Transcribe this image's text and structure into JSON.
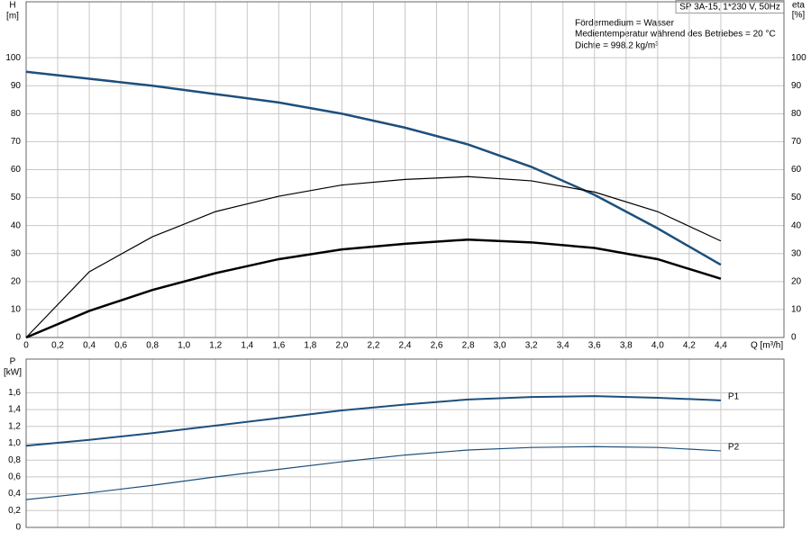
{
  "chart_data": [
    {
      "type": "line",
      "ylabel": "H",
      "yunit": "[m]",
      "y2label": "eta",
      "y2unit": "[%]",
      "xlabel": "Q [m³/h]",
      "annotations": [
        "SP 3A-15, 1*230 V, 50Hz",
        "Fördermedium = Wasser",
        "Medientemperatur während des Betriebes = 20 °C",
        "Dichte = 998.2 kg/m³"
      ],
      "x": [
        0,
        0.4,
        0.8,
        1.2,
        1.6,
        2.0,
        2.4,
        2.8,
        3.2,
        3.6,
        4.0,
        4.4
      ],
      "series": [
        {
          "color": "#1d4f7c",
          "values": [
            95,
            92.5,
            90,
            87,
            84,
            80,
            75,
            69,
            61,
            51,
            39,
            26
          ]
        },
        {
          "color": "#000000",
          "axis": "y2",
          "values": [
            0,
            23.5,
            36,
            45,
            50.5,
            54.5,
            56.5,
            57.5,
            56,
            52,
            45,
            34.5
          ]
        },
        {
          "color": "#000000",
          "axis": "y2",
          "values": [
            0,
            9.5,
            17,
            23,
            28,
            31.5,
            33.5,
            35,
            34,
            32,
            28,
            21
          ]
        }
      ],
      "xlim": [
        0,
        4.8
      ],
      "xticks": [
        0,
        {
          "value": 0.2,
          "label": "0,2"
        },
        {
          "value": 0.4,
          "label": "0,4"
        },
        {
          "value": 0.6,
          "label": "0,6"
        },
        {
          "value": 0.8,
          "label": "0,8"
        },
        {
          "value": 1.0,
          "label": "1,0"
        },
        {
          "value": 1.2,
          "label": "1,2"
        },
        {
          "value": 1.4,
          "label": "1,4"
        },
        {
          "value": 1.6,
          "label": "1,6"
        },
        {
          "value": 1.8,
          "label": "1,8"
        },
        {
          "value": 2.0,
          "label": "2,0"
        },
        {
          "value": 2.2,
          "label": "2,2"
        },
        {
          "value": 2.4,
          "label": "2,4"
        },
        {
          "value": 2.6,
          "label": "2,6"
        },
        {
          "value": 2.8,
          "label": "2,8"
        },
        {
          "value": 3.0,
          "label": "3,0"
        },
        {
          "value": 3.2,
          "label": "3,2"
        },
        {
          "value": 3.4,
          "label": "3,4"
        },
        {
          "value": 3.6,
          "label": "3,6"
        },
        {
          "value": 3.8,
          "label": "3,8"
        },
        {
          "value": 4.0,
          "label": "4,0"
        },
        {
          "value": 4.2,
          "label": "4,2"
        },
        {
          "value": 4.4,
          "label": "4,4"
        }
      ],
      "ylim": [
        0,
        120
      ],
      "yticks": [
        0,
        10,
        20,
        30,
        40,
        50,
        60,
        70,
        80,
        90,
        100
      ],
      "y2lim": [
        0,
        120
      ],
      "y2ticks": [
        0,
        10,
        20,
        30,
        40,
        50,
        60,
        70,
        80,
        90,
        100
      ],
      "grid": true
    },
    {
      "type": "line",
      "ylabel": "P",
      "yunit": "[kW]",
      "x": [
        0,
        0.4,
        0.8,
        1.2,
        1.6,
        2.0,
        2.4,
        2.8,
        3.2,
        3.6,
        4.0,
        4.4
      ],
      "series": [
        {
          "name": "P1",
          "color": "#1d4f7c",
          "values": [
            0.97,
            1.04,
            1.12,
            1.21,
            1.3,
            1.39,
            1.46,
            1.52,
            1.55,
            1.56,
            1.54,
            1.51
          ]
        },
        {
          "name": "P2",
          "color": "#1d4f7c",
          "values": [
            0.33,
            0.41,
            0.5,
            0.6,
            0.69,
            0.78,
            0.86,
            0.92,
            0.95,
            0.96,
            0.95,
            0.91
          ]
        }
      ],
      "xlim": [
        0,
        4.8
      ],
      "ylim": [
        0,
        2.0
      ],
      "yticks": [
        0,
        {
          "value": 0.2,
          "label": "0,2"
        },
        {
          "value": 0.4,
          "label": "0,4"
        },
        {
          "value": 0.6,
          "label": "0,6"
        },
        {
          "value": 0.8,
          "label": "0,8"
        },
        {
          "value": 1.0,
          "label": "1,0"
        },
        {
          "value": 1.2,
          "label": "1,2"
        },
        {
          "value": 1.4,
          "label": "1,4"
        },
        {
          "value": 1.6,
          "label": "1,6"
        }
      ],
      "grid": true
    }
  ]
}
